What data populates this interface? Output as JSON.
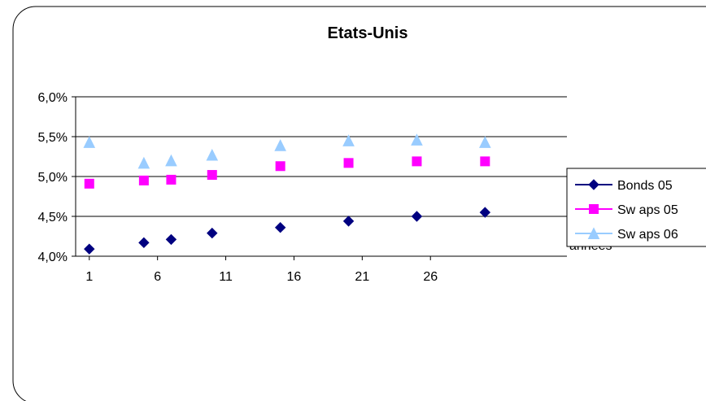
{
  "chart_data": {
    "type": "scatter",
    "title": "Etats-Unis",
    "xlabel": "années",
    "ylabel": "",
    "xlim": [
      0,
      36
    ],
    "ylim": [
      4.0,
      6.0
    ],
    "x_ticks": [
      1,
      6,
      11,
      16,
      21,
      26
    ],
    "y_ticks": [
      {
        "value": 4.0,
        "label": "4,0%"
      },
      {
        "value": 4.5,
        "label": "4,5%"
      },
      {
        "value": 5.0,
        "label": "5,0%"
      },
      {
        "value": 5.5,
        "label": "5,5%"
      },
      {
        "value": 6.0,
        "label": "6,0%"
      }
    ],
    "grid": true,
    "legend_position": "right",
    "series": [
      {
        "name": "Bonds 05",
        "color": "#000080",
        "marker": "diamond",
        "x": [
          1,
          5,
          7,
          10,
          15,
          20,
          25,
          30
        ],
        "y": [
          4.09,
          4.17,
          4.21,
          4.29,
          4.36,
          4.44,
          4.5,
          4.55
        ]
      },
      {
        "name": "Sw aps 05",
        "color": "#FF00FF",
        "marker": "square",
        "x": [
          1,
          5,
          7,
          10,
          15,
          20,
          25,
          30
        ],
        "y": [
          4.91,
          4.95,
          4.96,
          5.02,
          5.13,
          5.17,
          5.19,
          5.19
        ]
      },
      {
        "name": "Sw aps 06",
        "color": "#99CCFF",
        "marker": "triangle",
        "x": [
          1,
          5,
          7,
          10,
          15,
          20,
          25,
          30
        ],
        "y": [
          5.43,
          5.17,
          5.2,
          5.27,
          5.39,
          5.45,
          5.46,
          5.43
        ]
      }
    ]
  }
}
